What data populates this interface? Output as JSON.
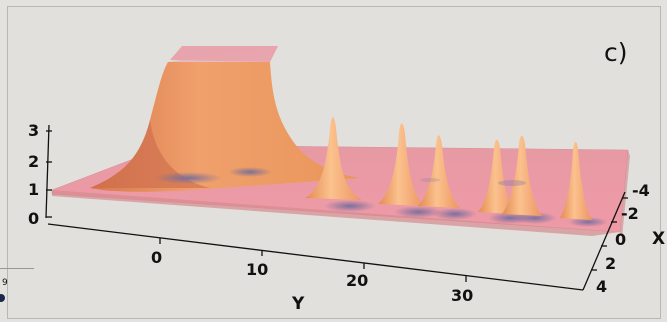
{
  "panel_label": "c)",
  "z_ticks": [
    "0",
    "1",
    "2",
    "3"
  ],
  "y_ticks": [
    "0",
    "10",
    "20",
    "30"
  ],
  "x_ticks": [
    "-4",
    "-2",
    "0",
    "2",
    "4"
  ],
  "y_axis_title": "Y",
  "x_axis_title": "X",
  "edge_fragment": "9",
  "colors": {
    "background": "#e2e0dc",
    "plateau_top": "#e8a3ac",
    "surface_light": "#f1a57a",
    "surface_dark": "#c76a54",
    "shadow": "#6f6a9c"
  }
}
